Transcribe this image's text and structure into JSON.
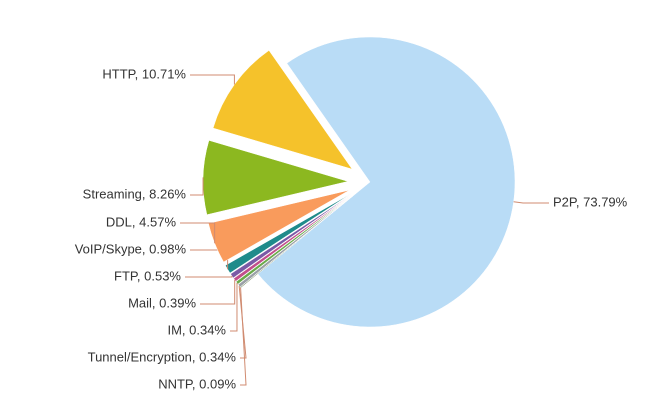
{
  "chart_data": {
    "type": "pie",
    "values": [
      73.79,
      0.09,
      0.34,
      0.34,
      0.39,
      0.53,
      0.98,
      4.57,
      8.26,
      10.71
    ],
    "value_labels": [
      "P2P, 73.79%",
      "NNTP, 0.09%",
      "Tunnel/Encryption, 0.34%",
      "IM, 0.34%",
      "Mail, 0.39%",
      "FTP, 0.53%",
      "VoIP/Skype, 0.98%",
      "DDL, 4.57%",
      "Streaming, 8.26%",
      "HTTP, 10.71%"
    ],
    "colors": [
      "#b9dcf6",
      "#55703a",
      "#9aa0a6",
      "#6aaa4a",
      "#c24f8c",
      "#7a5aa6",
      "#1f8b8b",
      "#f99b5c",
      "#8cb820",
      "#f5c22b"
    ]
  }
}
